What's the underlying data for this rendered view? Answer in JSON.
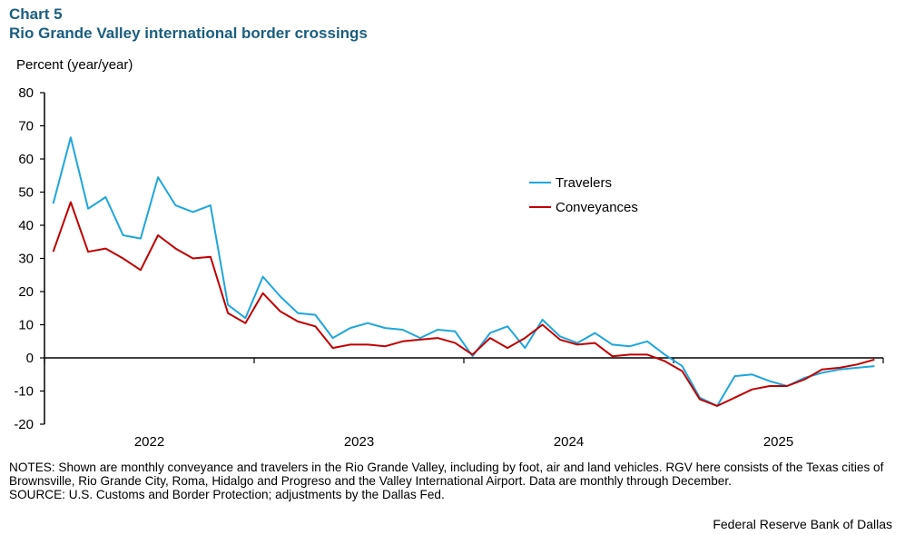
{
  "header": {
    "chart_number": "Chart 5",
    "title": "Rio Grande Valley international border crossings"
  },
  "notes": "NOTES: Shown are monthly conveyance and travelers in the Rio Grande Valley, including by foot, air and land vehicles. RGV here consists of the Texas cities of Brownsville, Rio Grande City, Roma, Hidalgo and Progreso and the Valley International Airport. Data are monthly through December.",
  "source": "SOURCE: U.S. Customs and Border Protection; adjustments by the Dallas Fed.",
  "credit": "Federal Reserve Bank of Dallas",
  "chart_data": {
    "type": "line",
    "title": "Rio Grande Valley international border crossings",
    "ylabel": "Percent (year/year)",
    "xlabel": "",
    "ylim": [
      -20,
      80
    ],
    "yticks": [
      -20,
      -10,
      0,
      10,
      20,
      30,
      40,
      50,
      60,
      70,
      80
    ],
    "x_tick_labels": [
      "2022",
      "2023",
      "2024",
      "2025"
    ],
    "x_frequency": "monthly",
    "x_start": "2022-01",
    "x_end": "2025-12",
    "grid": false,
    "legend_position": "top-right",
    "series": [
      {
        "name": "Travelers",
        "color": "#1ea6dc",
        "values": [
          46.5,
          66.5,
          45,
          48.5,
          37,
          36,
          54.5,
          46,
          44,
          46,
          16,
          12,
          24.5,
          18.5,
          13.5,
          13,
          6,
          9,
          10.5,
          9,
          8.5,
          6,
          8.5,
          8,
          0.5,
          7.5,
          9.5,
          3,
          11.5,
          6.5,
          4.5,
          7.5,
          4,
          3.5,
          5,
          1,
          -2.5,
          -12,
          -14.5,
          -5.5,
          -5,
          -7,
          -8.5,
          -6,
          -4.5,
          -3.5,
          -3,
          -2.5
        ]
      },
      {
        "name": "Conveyances",
        "color": "#c00000",
        "values": [
          32,
          47,
          32,
          33,
          30,
          26.5,
          37,
          33,
          30,
          30.5,
          13.5,
          10.5,
          19.5,
          14,
          11,
          9.5,
          3,
          4,
          4,
          3.5,
          5,
          5.5,
          6,
          4.5,
          1,
          6,
          3,
          6,
          10,
          5.5,
          4,
          4.5,
          0.5,
          1,
          1,
          -1,
          -4,
          -12.5,
          -14.5,
          -12,
          -9.5,
          -8.5,
          -8.5,
          -6.5,
          -3.5,
          -3,
          -2,
          -0.5
        ]
      }
    ]
  }
}
